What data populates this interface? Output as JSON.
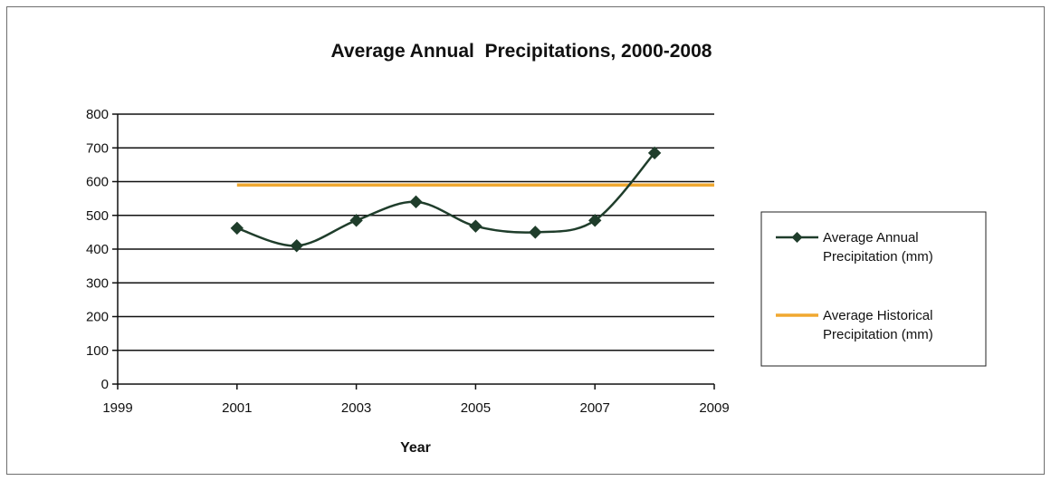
{
  "chart_data": {
    "type": "line",
    "title": "Average Annual  Precipitations, 2000-2008",
    "xlabel": "Year",
    "ylabel": "",
    "xlim": [
      1999,
      2009
    ],
    "ylim": [
      0,
      800
    ],
    "x_ticks": [
      "1999",
      "2001",
      "2003",
      "2005",
      "2007",
      "2009"
    ],
    "y_ticks": [
      "0",
      "100",
      "200",
      "300",
      "400",
      "500",
      "600",
      "700",
      "800"
    ],
    "grid": true,
    "legend_position": "right",
    "series": [
      {
        "name": "Average Annual Precipitation (mm)",
        "legend_lines": [
          "Average Annual",
          "Precipitation (mm)"
        ],
        "color": "#1f3d2b",
        "marker": "diamond",
        "smooth": true,
        "x": [
          2001,
          2002,
          2003,
          2004,
          2005,
          2006,
          2007,
          2008
        ],
        "y": [
          462,
          410,
          485,
          540,
          468,
          450,
          485,
          685
        ]
      },
      {
        "name": "Average Historical Precipitation (mm)",
        "legend_lines": [
          "Average Historical",
          "Precipitation (mm)"
        ],
        "color": "#f0a830",
        "marker": "none",
        "smooth": false,
        "x": [
          2001,
          2009
        ],
        "y": [
          590,
          590
        ]
      }
    ]
  }
}
